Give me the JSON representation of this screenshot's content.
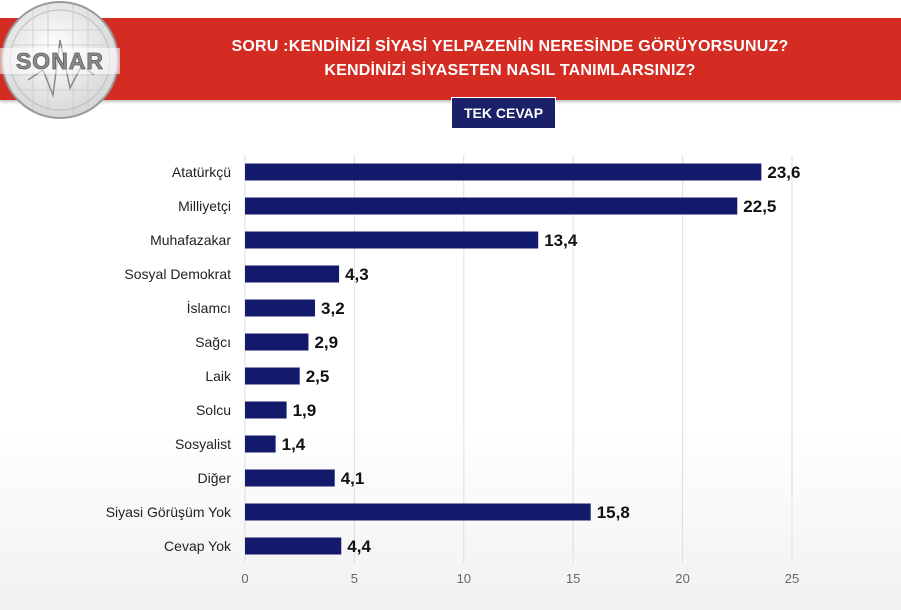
{
  "header": {
    "title_line1": "SORU :KENDİNİZİ SİYASİ YELPAZENİN NERESİNDE GÖRÜYORSUNUZ?",
    "title_line2": "KENDİNİZİ SİYASETEN NASIL TANIMLARSINIZ?",
    "badge": "TEK CEVAP",
    "logo_text": "SONAR",
    "header_color": "#d42b22",
    "badge_color": "#1b2169"
  },
  "chart_data": {
    "type": "bar",
    "orientation": "horizontal",
    "categories": [
      "Atatürkçü",
      "Milliyetçi",
      "Muhafazakar",
      "Sosyal Demokrat",
      "İslamcı",
      "Sağcı",
      "Laik",
      "Solcu",
      "Sosyalist",
      "Diğer",
      "Siyasi Görüşüm Yok",
      "Cevap Yok"
    ],
    "values": [
      23.6,
      22.5,
      13.4,
      4.3,
      3.2,
      2.9,
      2.5,
      1.9,
      1.4,
      4.1,
      15.8,
      4.4
    ],
    "value_labels": [
      "23,6",
      "22,5",
      "13,4",
      "4,3",
      "3,2",
      "2,9",
      "2,5",
      "1,9",
      "1,4",
      "4,1",
      "15,8",
      "4,4"
    ],
    "xlim": [
      0,
      25
    ],
    "xticks": [
      0,
      5,
      10,
      15,
      20,
      25
    ],
    "grid": true,
    "bar_color": "#141a6b"
  }
}
